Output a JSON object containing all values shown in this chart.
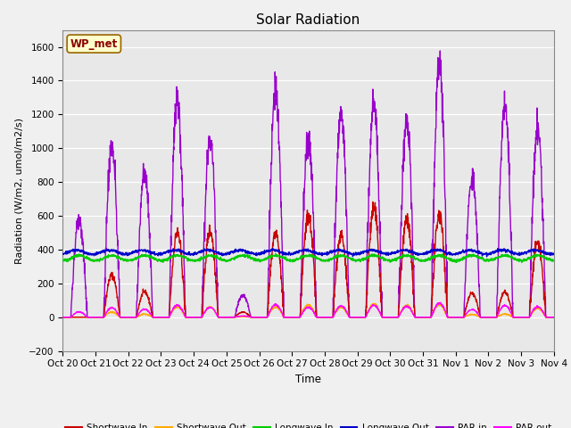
{
  "title": "Solar Radiation",
  "ylabel": "Radiation (W/m2, umol/m2/s)",
  "xlabel": "Time",
  "ylim": [
    -200,
    1700
  ],
  "yticks": [
    -200,
    0,
    200,
    400,
    600,
    800,
    1000,
    1200,
    1400,
    1600
  ],
  "xtick_labels": [
    "Oct 20",
    "Oct 21",
    "Oct 22",
    "Oct 23",
    "Oct 24",
    "Oct 25",
    "Oct 26",
    "Oct 27",
    "Oct 28",
    "Oct 29",
    "Oct 30",
    "Oct 31",
    "Nov 1",
    "Nov 2",
    "Nov 3",
    "Nov 4"
  ],
  "fig_bg_color": "#f0f0f0",
  "plot_bg_color": "#e8e8e8",
  "station_label": "WP_met",
  "series": {
    "shortwave_in": {
      "color": "#cc0000",
      "label": "Shortwave In",
      "lw": 1.0
    },
    "shortwave_out": {
      "color": "#ffaa00",
      "label": "Shortwave Out",
      "lw": 1.0
    },
    "longwave_in": {
      "color": "#00cc00",
      "label": "Longwave In",
      "lw": 1.0
    },
    "longwave_out": {
      "color": "#0000cc",
      "label": "Longwave Out",
      "lw": 1.0
    },
    "par_in": {
      "color": "#9900cc",
      "label": "PAR in",
      "lw": 1.0
    },
    "par_out": {
      "color": "#ff00ff",
      "label": "PAR out",
      "lw": 1.0
    }
  },
  "n_days": 15,
  "pts_per_day": 144,
  "sw_in_peaks": [
    0,
    250,
    150,
    500,
    510,
    30,
    500,
    600,
    480,
    640,
    580,
    600,
    140,
    150,
    440
  ],
  "par_in_peaks": [
    580,
    1000,
    870,
    1290,
    1060,
    130,
    1350,
    1060,
    1220,
    1270,
    1160,
    1530,
    830,
    1260,
    1120
  ]
}
